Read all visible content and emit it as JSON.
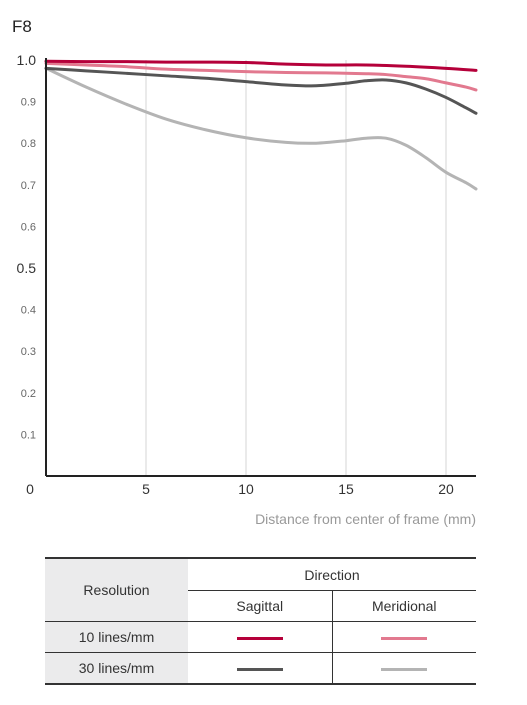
{
  "chart_data": {
    "type": "line",
    "title": "F8",
    "xlabel": "Distance from center of frame (mm)",
    "ylabel": "",
    "xlim": [
      0,
      21.5
    ],
    "ylim": [
      0,
      1.0
    ],
    "x_ticks": [
      {
        "value": 0,
        "label": "0"
      },
      {
        "value": 5,
        "label": "5"
      },
      {
        "value": 10,
        "label": "10"
      },
      {
        "value": 15,
        "label": "15"
      },
      {
        "value": 20,
        "label": "20"
      }
    ],
    "y_ticks": [
      {
        "value": 0.1,
        "label": "0.1"
      },
      {
        "value": 0.2,
        "label": "0.2"
      },
      {
        "value": 0.3,
        "label": "0.3"
      },
      {
        "value": 0.4,
        "label": "0.4"
      },
      {
        "value": 0.5,
        "label": "0.5"
      },
      {
        "value": 0.6,
        "label": "0.6"
      },
      {
        "value": 0.7,
        "label": "0.7"
      },
      {
        "value": 0.8,
        "label": "0.8"
      },
      {
        "value": 0.9,
        "label": "0.9"
      },
      {
        "value": 1.0,
        "label": "1.0"
      }
    ],
    "grid": "vertical",
    "series": [
      {
        "resolution": "10 lines/mm",
        "direction": "Sagittal",
        "color": "#b5003a",
        "x": [
          0,
          2,
          4,
          6,
          8,
          10,
          12,
          14,
          16,
          18,
          20,
          21.5
        ],
        "y": [
          0.997,
          0.996,
          0.996,
          0.995,
          0.995,
          0.994,
          0.99,
          0.988,
          0.988,
          0.985,
          0.98,
          0.975
        ]
      },
      {
        "resolution": "10 lines/mm",
        "direction": "Meridional",
        "color": "#e2798f",
        "x": [
          0,
          2,
          4,
          6,
          8,
          10,
          12,
          14,
          16,
          17,
          18,
          19,
          20,
          21,
          21.5
        ],
        "y": [
          0.992,
          0.988,
          0.984,
          0.978,
          0.975,
          0.972,
          0.97,
          0.969,
          0.967,
          0.965,
          0.96,
          0.955,
          0.945,
          0.935,
          0.928
        ]
      },
      {
        "resolution": "30 lines/mm",
        "direction": "Sagittal",
        "color": "#555555",
        "x": [
          0,
          2,
          4,
          6,
          8,
          10,
          12,
          13.5,
          15,
          16,
          17,
          18,
          19,
          20,
          21,
          21.5
        ],
        "y": [
          0.98,
          0.974,
          0.968,
          0.962,
          0.956,
          0.948,
          0.94,
          0.938,
          0.944,
          0.95,
          0.952,
          0.945,
          0.93,
          0.91,
          0.885,
          0.872
        ]
      },
      {
        "resolution": "30 lines/mm",
        "direction": "Meridional",
        "color": "#b4b4b4",
        "x": [
          0,
          2,
          4,
          6,
          8,
          10,
          12,
          13.5,
          15,
          16,
          17,
          18,
          19,
          20,
          21,
          21.5
        ],
        "y": [
          0.98,
          0.935,
          0.894,
          0.858,
          0.832,
          0.813,
          0.802,
          0.8,
          0.806,
          0.812,
          0.812,
          0.795,
          0.765,
          0.73,
          0.705,
          0.69
        ]
      }
    ]
  },
  "legend": {
    "resolution_header": "Resolution",
    "direction_header": "Direction",
    "sagittal": "Sagittal",
    "meridional": "Meridional",
    "rows": [
      {
        "label": "10 lines/mm",
        "sagittal_color": "#b5003a",
        "meridional_color": "#e2798f"
      },
      {
        "label": "30 lines/mm",
        "sagittal_color": "#555555",
        "meridional_color": "#b4b4b4"
      }
    ]
  }
}
